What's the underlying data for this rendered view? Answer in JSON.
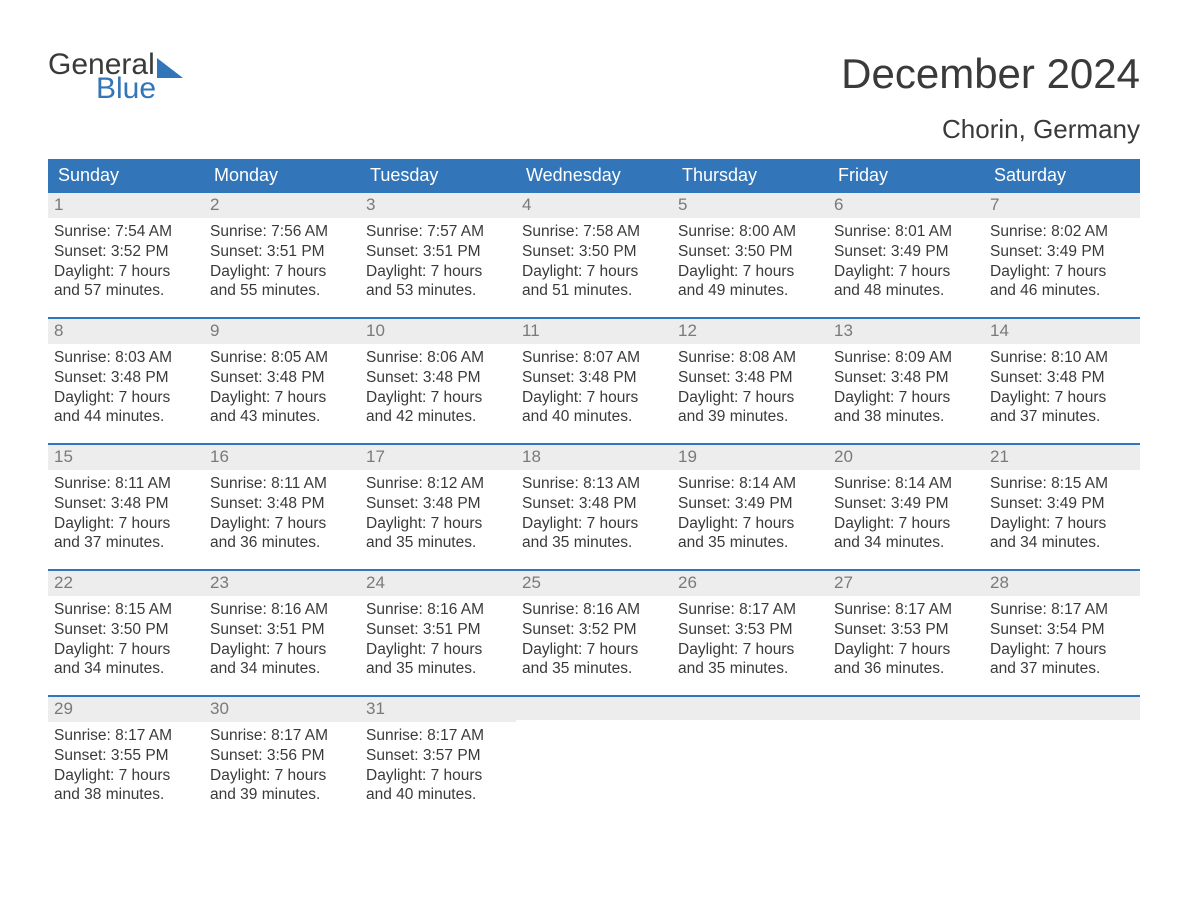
{
  "brand": {
    "text_general": "General",
    "text_blue": "Blue",
    "accent_color": "#3275b8"
  },
  "header": {
    "month_title": "December 2024",
    "location": "Chorin, Germany"
  },
  "calendar": {
    "type": "calendar-table",
    "header_bg": "#3275b8",
    "header_text_color": "#ffffff",
    "day_bar_bg": "#ededed",
    "day_bar_text_color": "#7a7a7a",
    "row_border_color": "#3275b8",
    "body_text_color": "#3a3a3a",
    "background_color": "#ffffff",
    "font_family": "Arial",
    "header_fontsize": 18,
    "body_fontsize": 15.5,
    "columns": [
      "Sunday",
      "Monday",
      "Tuesday",
      "Wednesday",
      "Thursday",
      "Friday",
      "Saturday"
    ],
    "weeks": [
      [
        {
          "num": "1",
          "sunrise": "7:54 AM",
          "sunset": "3:52 PM",
          "daylight_l1": "Daylight: 7 hours",
          "daylight_l2": "and 57 minutes."
        },
        {
          "num": "2",
          "sunrise": "7:56 AM",
          "sunset": "3:51 PM",
          "daylight_l1": "Daylight: 7 hours",
          "daylight_l2": "and 55 minutes."
        },
        {
          "num": "3",
          "sunrise": "7:57 AM",
          "sunset": "3:51 PM",
          "daylight_l1": "Daylight: 7 hours",
          "daylight_l2": "and 53 minutes."
        },
        {
          "num": "4",
          "sunrise": "7:58 AM",
          "sunset": "3:50 PM",
          "daylight_l1": "Daylight: 7 hours",
          "daylight_l2": "and 51 minutes."
        },
        {
          "num": "5",
          "sunrise": "8:00 AM",
          "sunset": "3:50 PM",
          "daylight_l1": "Daylight: 7 hours",
          "daylight_l2": "and 49 minutes."
        },
        {
          "num": "6",
          "sunrise": "8:01 AM",
          "sunset": "3:49 PM",
          "daylight_l1": "Daylight: 7 hours",
          "daylight_l2": "and 48 minutes."
        },
        {
          "num": "7",
          "sunrise": "8:02 AM",
          "sunset": "3:49 PM",
          "daylight_l1": "Daylight: 7 hours",
          "daylight_l2": "and 46 minutes."
        }
      ],
      [
        {
          "num": "8",
          "sunrise": "8:03 AM",
          "sunset": "3:48 PM",
          "daylight_l1": "Daylight: 7 hours",
          "daylight_l2": "and 44 minutes."
        },
        {
          "num": "9",
          "sunrise": "8:05 AM",
          "sunset": "3:48 PM",
          "daylight_l1": "Daylight: 7 hours",
          "daylight_l2": "and 43 minutes."
        },
        {
          "num": "10",
          "sunrise": "8:06 AM",
          "sunset": "3:48 PM",
          "daylight_l1": "Daylight: 7 hours",
          "daylight_l2": "and 42 minutes."
        },
        {
          "num": "11",
          "sunrise": "8:07 AM",
          "sunset": "3:48 PM",
          "daylight_l1": "Daylight: 7 hours",
          "daylight_l2": "and 40 minutes."
        },
        {
          "num": "12",
          "sunrise": "8:08 AM",
          "sunset": "3:48 PM",
          "daylight_l1": "Daylight: 7 hours",
          "daylight_l2": "and 39 minutes."
        },
        {
          "num": "13",
          "sunrise": "8:09 AM",
          "sunset": "3:48 PM",
          "daylight_l1": "Daylight: 7 hours",
          "daylight_l2": "and 38 minutes."
        },
        {
          "num": "14",
          "sunrise": "8:10 AM",
          "sunset": "3:48 PM",
          "daylight_l1": "Daylight: 7 hours",
          "daylight_l2": "and 37 minutes."
        }
      ],
      [
        {
          "num": "15",
          "sunrise": "8:11 AM",
          "sunset": "3:48 PM",
          "daylight_l1": "Daylight: 7 hours",
          "daylight_l2": "and 37 minutes."
        },
        {
          "num": "16",
          "sunrise": "8:11 AM",
          "sunset": "3:48 PM",
          "daylight_l1": "Daylight: 7 hours",
          "daylight_l2": "and 36 minutes."
        },
        {
          "num": "17",
          "sunrise": "8:12 AM",
          "sunset": "3:48 PM",
          "daylight_l1": "Daylight: 7 hours",
          "daylight_l2": "and 35 minutes."
        },
        {
          "num": "18",
          "sunrise": "8:13 AM",
          "sunset": "3:48 PM",
          "daylight_l1": "Daylight: 7 hours",
          "daylight_l2": "and 35 minutes."
        },
        {
          "num": "19",
          "sunrise": "8:14 AM",
          "sunset": "3:49 PM",
          "daylight_l1": "Daylight: 7 hours",
          "daylight_l2": "and 35 minutes."
        },
        {
          "num": "20",
          "sunrise": "8:14 AM",
          "sunset": "3:49 PM",
          "daylight_l1": "Daylight: 7 hours",
          "daylight_l2": "and 34 minutes."
        },
        {
          "num": "21",
          "sunrise": "8:15 AM",
          "sunset": "3:49 PM",
          "daylight_l1": "Daylight: 7 hours",
          "daylight_l2": "and 34 minutes."
        }
      ],
      [
        {
          "num": "22",
          "sunrise": "8:15 AM",
          "sunset": "3:50 PM",
          "daylight_l1": "Daylight: 7 hours",
          "daylight_l2": "and 34 minutes."
        },
        {
          "num": "23",
          "sunrise": "8:16 AM",
          "sunset": "3:51 PM",
          "daylight_l1": "Daylight: 7 hours",
          "daylight_l2": "and 34 minutes."
        },
        {
          "num": "24",
          "sunrise": "8:16 AM",
          "sunset": "3:51 PM",
          "daylight_l1": "Daylight: 7 hours",
          "daylight_l2": "and 35 minutes."
        },
        {
          "num": "25",
          "sunrise": "8:16 AM",
          "sunset": "3:52 PM",
          "daylight_l1": "Daylight: 7 hours",
          "daylight_l2": "and 35 minutes."
        },
        {
          "num": "26",
          "sunrise": "8:17 AM",
          "sunset": "3:53 PM",
          "daylight_l1": "Daylight: 7 hours",
          "daylight_l2": "and 35 minutes."
        },
        {
          "num": "27",
          "sunrise": "8:17 AM",
          "sunset": "3:53 PM",
          "daylight_l1": "Daylight: 7 hours",
          "daylight_l2": "and 36 minutes."
        },
        {
          "num": "28",
          "sunrise": "8:17 AM",
          "sunset": "3:54 PM",
          "daylight_l1": "Daylight: 7 hours",
          "daylight_l2": "and 37 minutes."
        }
      ],
      [
        {
          "num": "29",
          "sunrise": "8:17 AM",
          "sunset": "3:55 PM",
          "daylight_l1": "Daylight: 7 hours",
          "daylight_l2": "and 38 minutes."
        },
        {
          "num": "30",
          "sunrise": "8:17 AM",
          "sunset": "3:56 PM",
          "daylight_l1": "Daylight: 7 hours",
          "daylight_l2": "and 39 minutes."
        },
        {
          "num": "31",
          "sunrise": "8:17 AM",
          "sunset": "3:57 PM",
          "daylight_l1": "Daylight: 7 hours",
          "daylight_l2": "and 40 minutes."
        },
        null,
        null,
        null,
        null
      ]
    ],
    "labels": {
      "sunrise_prefix": "Sunrise: ",
      "sunset_prefix": "Sunset: "
    }
  }
}
